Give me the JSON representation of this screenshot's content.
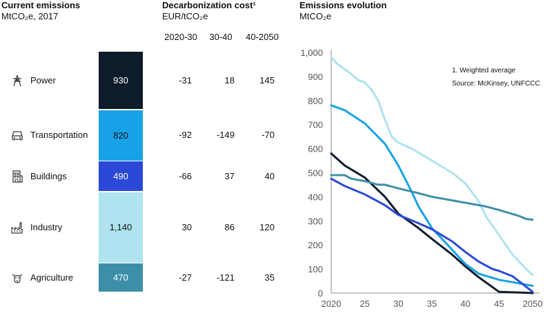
{
  "left": {
    "title": "Current emissions",
    "subtitle": "MtCO₂e, 2017"
  },
  "middle": {
    "title": "Decarbonization cost¹",
    "subtitle": "EUR/tCO₂e",
    "col_headers": [
      "2020-30",
      "30-40",
      "40-2050"
    ]
  },
  "right": {
    "title": "Emissions evolution",
    "subtitle": "MtCO₂e",
    "notes": [
      "1. Weighted average",
      "Source: McKinsey, UNFCCC"
    ]
  },
  "sectors": [
    {
      "name": "Power",
      "icon": "power-pylon-icon",
      "value": 930,
      "label": "930",
      "color": "#0d1b2a",
      "text_color": "#ffffff",
      "costs": [
        "-31",
        "18",
        "145"
      ]
    },
    {
      "name": "Transportation",
      "icon": "car-icon",
      "value": 820,
      "label": "820",
      "color": "#17a2e8",
      "text_color": "#111111",
      "costs": [
        "-92",
        "-149",
        "-70"
      ]
    },
    {
      "name": "Buildings",
      "icon": "building-icon",
      "value": 490,
      "label": "490",
      "color": "#2b49d6",
      "text_color": "#ffffff",
      "costs": [
        "-66",
        "37",
        "40"
      ]
    },
    {
      "name": "Industry",
      "icon": "factory-icon",
      "value": 1140,
      "label": "1,140",
      "color": "#aee3ef",
      "text_color": "#111111",
      "costs": [
        "30",
        "86",
        "120"
      ]
    },
    {
      "name": "Agriculture",
      "icon": "cow-icon",
      "value": 470,
      "label": "470",
      "color": "#3d8fa8",
      "text_color": "#ffffff",
      "costs": [
        "-27",
        "-121",
        "35"
      ]
    }
  ],
  "chart_data": [
    {
      "type": "bar",
      "title": "Current emissions",
      "subtitle": "MtCO₂e, 2017",
      "stacked": true,
      "categories": [
        "Power",
        "Transportation",
        "Buildings",
        "Industry",
        "Agriculture"
      ],
      "values": [
        930,
        820,
        490,
        1140,
        470
      ]
    },
    {
      "type": "table",
      "title": "Decarbonization cost¹",
      "subtitle": "EUR/tCO₂e",
      "columns": [
        "2020-30",
        "30-40",
        "40-2050"
      ],
      "rows": [
        {
          "sector": "Power",
          "values": [
            -31,
            18,
            145
          ]
        },
        {
          "sector": "Transportation",
          "values": [
            -92,
            -149,
            -70
          ]
        },
        {
          "sector": "Buildings",
          "values": [
            -66,
            37,
            40
          ]
        },
        {
          "sector": "Industry",
          "values": [
            30,
            86,
            120
          ]
        },
        {
          "sector": "Agriculture",
          "values": [
            -27,
            -121,
            35
          ]
        }
      ]
    },
    {
      "type": "line",
      "title": "Emissions evolution",
      "subtitle": "MtCO₂e",
      "xlim": [
        2020,
        2050
      ],
      "ylim": [
        0,
        1000
      ],
      "x_tick_labels": [
        "2020",
        "25",
        "30",
        "35",
        "40",
        "45",
        "2050"
      ],
      "x_tick_values": [
        2020,
        2025,
        2030,
        2035,
        2040,
        2045,
        2050
      ],
      "y_ticks": [
        0,
        100,
        200,
        300,
        400,
        500,
        600,
        700,
        800,
        900,
        1000
      ],
      "y_tick_labels": [
        "0",
        "100",
        "200",
        "300",
        "400",
        "500",
        "600",
        "700",
        "800",
        "900",
        "1,000"
      ],
      "grid": false,
      "series": [
        {
          "color": "#0d1b2a",
          "x": [
            2020,
            2022,
            2025,
            2028,
            2030,
            2033,
            2035,
            2038,
            2040,
            2042,
            2045,
            2050
          ],
          "y": [
            580,
            530,
            480,
            400,
            330,
            270,
            225,
            160,
            110,
            65,
            5,
            0
          ]
        },
        {
          "color": "#17a2e8",
          "x": [
            2020,
            2022,
            2025,
            2028,
            2030,
            2032,
            2033,
            2035,
            2038,
            2040,
            2042,
            2045,
            2047,
            2050
          ],
          "y": [
            780,
            760,
            705,
            620,
            530,
            420,
            360,
            270,
            180,
            120,
            80,
            55,
            45,
            30
          ]
        },
        {
          "color": "#2b49d6",
          "x": [
            2020,
            2022,
            2025,
            2028,
            2030,
            2033,
            2035,
            2038,
            2040,
            2042,
            2044,
            2045,
            2047,
            2050
          ],
          "y": [
            475,
            445,
            410,
            365,
            325,
            290,
            265,
            215,
            170,
            130,
            100,
            92,
            70,
            5
          ]
        },
        {
          "color": "#aee3ef",
          "x": [
            2020,
            2021,
            2023,
            2024,
            2025,
            2026,
            2027,
            2028,
            2029,
            2030,
            2032,
            2035,
            2038,
            2040,
            2042,
            2043,
            2045,
            2047,
            2049,
            2050
          ],
          "y": [
            980,
            950,
            910,
            885,
            875,
            845,
            800,
            720,
            650,
            625,
            600,
            550,
            500,
            455,
            380,
            320,
            240,
            160,
            100,
            75
          ]
        },
        {
          "color": "#3d8fa8",
          "x": [
            2020,
            2022,
            2023,
            2025,
            2027,
            2028,
            2030,
            2033,
            2035,
            2038,
            2040,
            2043,
            2045,
            2048,
            2049,
            2050
          ],
          "y": [
            490,
            490,
            475,
            465,
            450,
            450,
            435,
            415,
            400,
            385,
            375,
            360,
            345,
            320,
            308,
            305
          ]
        }
      ]
    }
  ]
}
